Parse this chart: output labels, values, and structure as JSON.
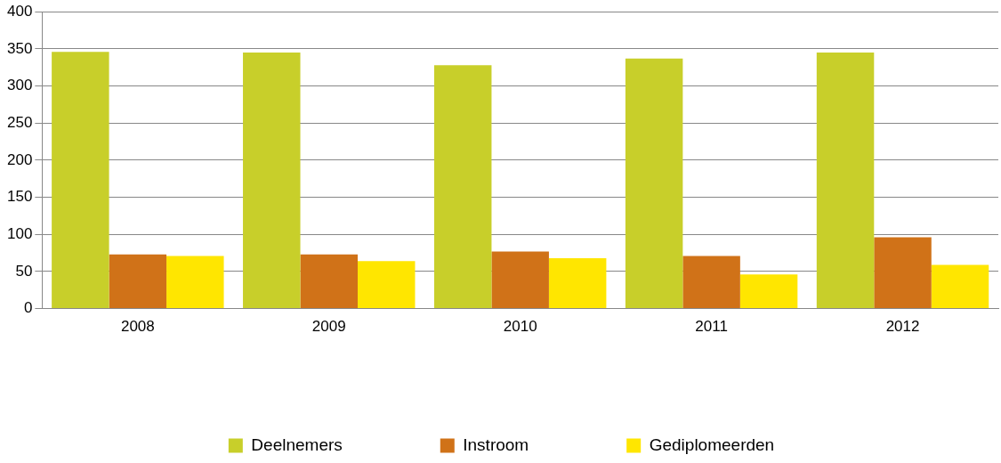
{
  "chart_data": {
    "type": "bar",
    "categories": [
      "2008",
      "2009",
      "2010",
      "2011",
      "2012"
    ],
    "series": [
      {
        "name": "Deelnemers",
        "color": "#c8cf2a",
        "values": [
          346,
          345,
          328,
          337,
          345
        ]
      },
      {
        "name": "Instroom",
        "color": "#d07218",
        "values": [
          73,
          73,
          77,
          71,
          96
        ]
      },
      {
        "name": "Gediplomeerden",
        "color": "#ffe600",
        "values": [
          71,
          64,
          68,
          46,
          59
        ]
      }
    ],
    "ylim": [
      0,
      400
    ],
    "yticks": [
      0,
      50,
      100,
      150,
      200,
      250,
      300,
      350,
      400
    ],
    "grid": "y",
    "legend": "bottom"
  }
}
